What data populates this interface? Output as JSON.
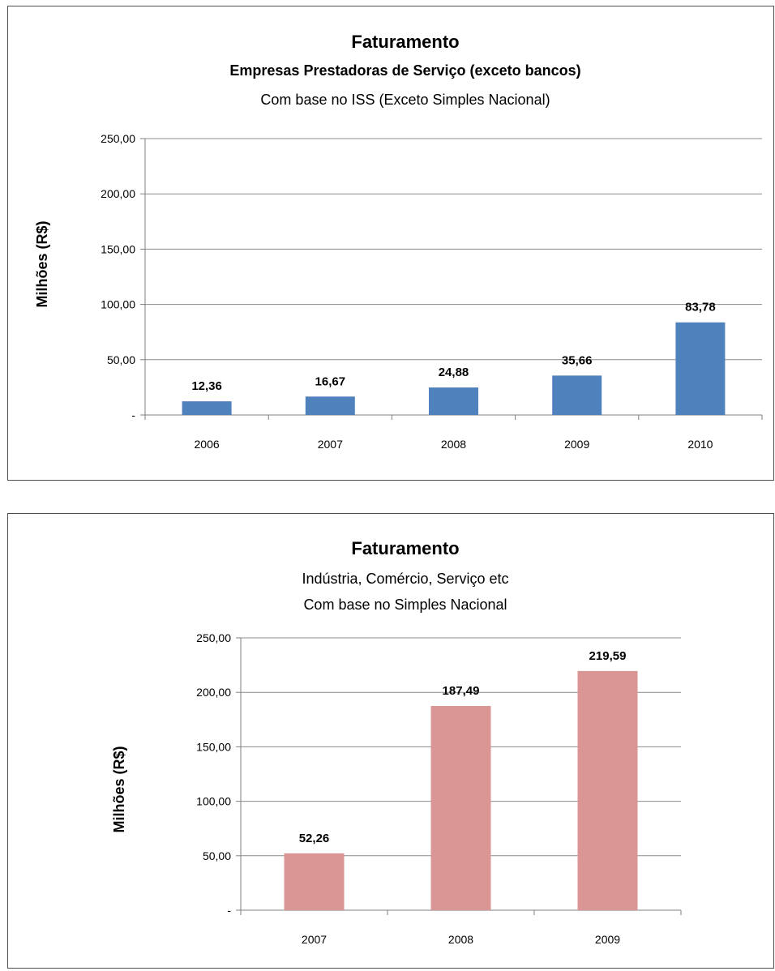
{
  "chart_data": [
    {
      "type": "bar",
      "title": "Faturamento",
      "subtitle": "Empresas Prestadoras de Serviço (exceto bancos)",
      "subtitle2": "Com base no ISS  (Exceto Simples Nacional)",
      "ylabel": "Milhões (R$)",
      "xlabel": "",
      "categories": [
        "2006",
        "2007",
        "2008",
        "2009",
        "2010"
      ],
      "values": [
        12.36,
        16.67,
        24.88,
        35.66,
        83.78
      ],
      "data_labels": [
        "12,36",
        "16,67",
        "24,88",
        "35,66",
        "83,78"
      ],
      "yticks": [
        "-",
        "50,00",
        "100,00",
        "150,00",
        "200,00",
        "250,00"
      ],
      "ylim": [
        0,
        250
      ],
      "bar_color": "#4f81bd",
      "grid": true,
      "legend": "none"
    },
    {
      "type": "bar",
      "title": "Faturamento",
      "subtitle": "Indústria, Comércio, Serviço etc",
      "subtitle2": "Com base no Simples Nacional",
      "ylabel": "Milhões (R$)",
      "xlabel": "",
      "categories": [
        "2007",
        "2008",
        "2009"
      ],
      "values": [
        52.26,
        187.49,
        219.59
      ],
      "data_labels": [
        "52,26",
        "187,49",
        "219,59"
      ],
      "yticks": [
        "-",
        "50,00",
        "100,00",
        "150,00",
        "200,00",
        "250,00"
      ],
      "ylim": [
        0,
        250
      ],
      "bar_color": "#d99694",
      "grid": true,
      "legend": "none"
    }
  ]
}
